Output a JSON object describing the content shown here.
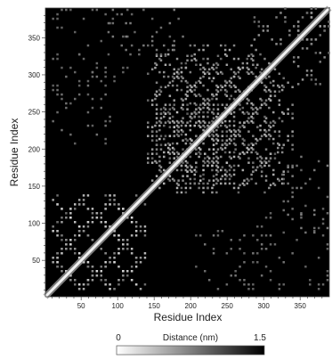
{
  "chart_data": {
    "type": "heatmap",
    "title": "",
    "xlabel": "Residue Index",
    "ylabel": "Residue Index",
    "xlim": [
      1,
      390
    ],
    "ylim": [
      1,
      390
    ],
    "xticks": [
      50,
      100,
      150,
      200,
      250,
      300,
      350
    ],
    "yticks": [
      50,
      100,
      150,
      200,
      250,
      300,
      350
    ],
    "colorbar": {
      "label": "Distance (nm)",
      "min": 0,
      "max": 1.5,
      "ticks": [
        {
          "value": 0,
          "label": "0"
        },
        {
          "value": 1.5,
          "label": "1.5"
        }
      ],
      "colors": [
        "#ffffff",
        "#000000"
      ]
    },
    "diagonal_band": {
      "from_residue": 1,
      "to_residue": 390,
      "distance": 0
    },
    "contact_clusters": [
      {
        "x_range": [
          10,
          140
        ],
        "y_range": [
          10,
          130
        ],
        "intensity": 0.85
      },
      {
        "x_range": [
          140,
          250
        ],
        "y_range": [
          150,
          260
        ],
        "intensity": 0.8
      },
      {
        "x_range": [
          180,
          330
        ],
        "y_range": [
          140,
          310
        ],
        "intensity": 0.7
      },
      {
        "x_range": [
          150,
          310
        ],
        "y_range": [
          230,
          340
        ],
        "intensity": 0.65
      },
      {
        "x_range": [
          10,
          90
        ],
        "y_range": [
          200,
          330
        ],
        "intensity": 0.35
      },
      {
        "x_range": [
          290,
          390
        ],
        "y_range": [
          10,
          120
        ],
        "intensity": 0.3
      },
      {
        "x_range": [
          340,
          390
        ],
        "y_range": [
          280,
          390
        ],
        "intensity": 0.55
      },
      {
        "x_range": [
          80,
          190
        ],
        "y_range": [
          320,
          390
        ],
        "intensity": 0.4
      }
    ]
  }
}
